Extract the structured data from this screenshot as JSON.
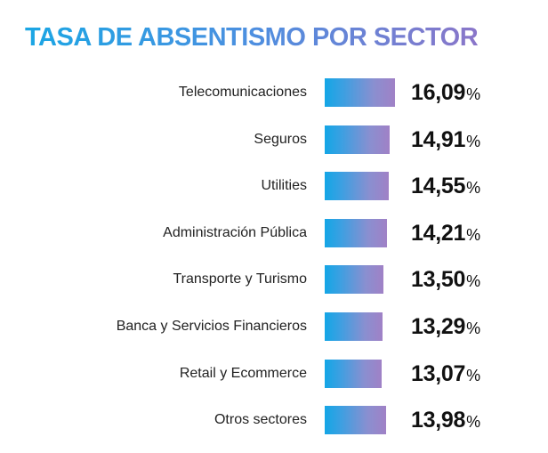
{
  "chart_data": {
    "type": "bar",
    "orientation": "horizontal",
    "title": "TASA DE ABSENTISMO POR SECTOR",
    "categories": [
      "Telecomunicaciones",
      "Seguros",
      "Utilities",
      "Administración Pública",
      "Transporte y Turismo",
      "Banca y Servicios Financieros",
      "Retail y Ecommerce",
      "Otros sectores"
    ],
    "values": [
      16.09,
      14.91,
      14.55,
      14.21,
      13.5,
      13.29,
      13.07,
      13.98
    ],
    "value_labels": [
      "16,09",
      "14,91",
      "14,55",
      "14,21",
      "13,50",
      "13,29",
      "13,07",
      "13,98"
    ],
    "unit": "%",
    "xlabel": "",
    "ylabel": "",
    "xlim": [
      0,
      16.09
    ]
  },
  "colors": {
    "title_gradient_start": "#1aa6e4",
    "title_gradient_end": "#8a76c9",
    "bar_gradient_start": "#13a6e6",
    "bar_gradient_end": "#a081c6"
  }
}
